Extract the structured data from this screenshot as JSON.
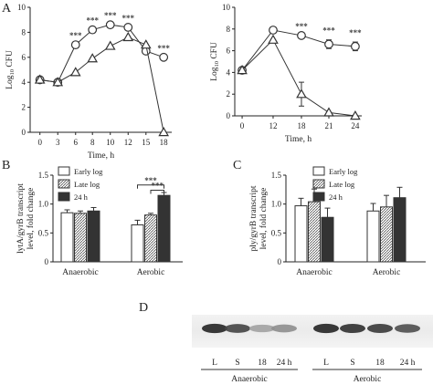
{
  "panels": {
    "a": "A",
    "b": "B",
    "c": "C",
    "d": "D"
  },
  "chart_data": [
    {
      "type": "line",
      "xlabel": "Time, h",
      "ylabel": "Log10 CFU",
      "x_ticks": [
        "0",
        "3",
        "6",
        "8",
        "10",
        "12",
        "15",
        "18"
      ],
      "y_ticks": [
        "0",
        "2",
        "4",
        "6",
        "8",
        "10"
      ],
      "ylim": [
        0,
        10
      ],
      "series": [
        {
          "marker": "circle",
          "values": [
            4.2,
            4.0,
            7.0,
            8.2,
            8.6,
            8.4,
            6.5,
            6.0
          ]
        },
        {
          "marker": "triangle",
          "values": [
            4.2,
            4.0,
            4.8,
            5.9,
            6.9,
            7.6,
            7.0,
            0.0
          ]
        }
      ],
      "significance": [
        {
          "x_index": 2,
          "label": "***"
        },
        {
          "x_index": 3,
          "label": "***"
        },
        {
          "x_index": 4,
          "label": "***"
        },
        {
          "x_index": 5,
          "label": "***"
        },
        {
          "x_index": 7,
          "label": "***"
        }
      ]
    },
    {
      "type": "line",
      "xlabel": "Time, h",
      "ylabel": "Log10 CFU",
      "x_ticks": [
        "0",
        "12",
        "18",
        "21",
        "24"
      ],
      "y_ticks": [
        "0",
        "2",
        "4",
        "6",
        "8",
        "10"
      ],
      "ylim": [
        0,
        10
      ],
      "series": [
        {
          "marker": "circle",
          "values": [
            4.2,
            7.9,
            7.4,
            6.6,
            6.4
          ],
          "errors": [
            0,
            0,
            0,
            0.4,
            0.4
          ]
        },
        {
          "marker": "triangle",
          "values": [
            4.2,
            7.0,
            2.0,
            0.3,
            0.0
          ],
          "errors": [
            0,
            0,
            1.1,
            0,
            0
          ]
        }
      ],
      "significance": [
        {
          "x_index": 2,
          "label": "***"
        },
        {
          "x_index": 3,
          "label": "***"
        },
        {
          "x_index": 4,
          "label": "***"
        }
      ]
    },
    {
      "type": "bar",
      "ylabel": "lytA/gyrB transcript level, fold change",
      "categories": [
        "Anaerobic",
        "Aerobic"
      ],
      "y_ticks": [
        "0",
        "0.5",
        "1.0",
        "1.5"
      ],
      "ylim": [
        0,
        1.5
      ],
      "series": [
        {
          "name": "Early log",
          "values": [
            0.85,
            0.64
          ],
          "errors": [
            0.05,
            0.08
          ]
        },
        {
          "name": "Late log",
          "values": [
            0.84,
            0.81
          ],
          "errors": [
            0.04,
            0.03
          ]
        },
        {
          "name": "24 h",
          "values": [
            0.88,
            1.15
          ],
          "errors": [
            0.06,
            0.05
          ]
        }
      ],
      "significance": [
        {
          "label": "***"
        },
        {
          "label": "***"
        }
      ]
    },
    {
      "type": "bar",
      "ylabel": "ply/gyrB transcript level, fold change",
      "categories": [
        "Anaerobic",
        "Aerobic"
      ],
      "y_ticks": [
        "0",
        "0.5",
        "1.0",
        "1.5"
      ],
      "ylim": [
        0,
        1.5
      ],
      "series": [
        {
          "name": "Early log",
          "values": [
            0.97,
            0.88
          ],
          "errors": [
            0.13,
            0.13
          ]
        },
        {
          "name": "Late log",
          "values": [
            1.04,
            0.95
          ],
          "errors": [
            0.22,
            0.2
          ]
        },
        {
          "name": "24 h",
          "values": [
            0.77,
            1.11
          ],
          "errors": [
            0.16,
            0.18
          ]
        }
      ]
    }
  ],
  "blot": {
    "lanes": [
      "L",
      "S",
      "18",
      "24 h",
      "L",
      "S",
      "18",
      "24 h"
    ],
    "groups": [
      "Anaerobic",
      "Aerobic"
    ],
    "intensity": [
      0.95,
      0.8,
      0.35,
      0.45,
      0.95,
      0.9,
      0.85,
      0.75
    ]
  },
  "colors": {
    "early": "#ffffff",
    "late": "hatched",
    "h24": "#333333"
  }
}
